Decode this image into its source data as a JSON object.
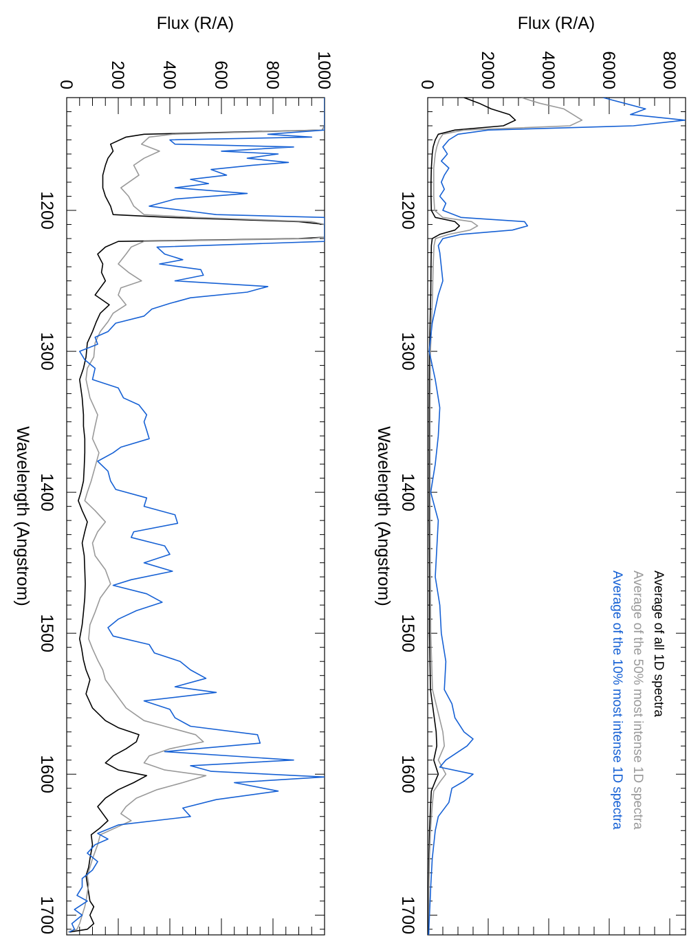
{
  "chart_data": [
    {
      "type": "line",
      "panel": "top",
      "orientation": "rotated-90",
      "xlabel": "Wavelength (Angstrom)",
      "ylabel": "Flux (R/A)",
      "xlim": [
        1120,
        1714
      ],
      "ylim": [
        0,
        8500
      ],
      "x_ticks": [
        "1200",
        "1300",
        "1400",
        "1500",
        "1600",
        "1700"
      ],
      "y_ticks": [
        "0",
        "2000",
        "4000",
        "6000",
        "8000"
      ],
      "legend": {
        "placement": "bottom-right",
        "entries": [
          {
            "label": "Average of all 1D spectra",
            "color": "#000000"
          },
          {
            "label": "Average of the 50% most intense 1D spectra",
            "color": "#999999"
          },
          {
            "label": "Average of the 10% most intense 1D spectra",
            "color": "#1560d4"
          }
        ]
      },
      "series": [
        {
          "name": "Average of all 1D spectra",
          "color": "#000000",
          "x": [
            1120,
            1124,
            1128,
            1132,
            1136,
            1140,
            1143,
            1146,
            1150,
            1155,
            1160,
            1170,
            1180,
            1190,
            1200,
            1205,
            1208,
            1211,
            1214,
            1217,
            1220,
            1225,
            1240,
            1260,
            1280,
            1300,
            1340,
            1380,
            1420,
            1460,
            1500,
            1540,
            1570,
            1580,
            1590,
            1600,
            1605,
            1612,
            1620,
            1640,
            1660,
            1680,
            1700,
            1714
          ],
          "y": [
            1200,
            1700,
            2100,
            2700,
            2900,
            2500,
            900,
            350,
            250,
            180,
            150,
            120,
            110,
            110,
            120,
            250,
            900,
            1050,
            900,
            400,
            150,
            120,
            110,
            100,
            80,
            60,
            50,
            50,
            50,
            60,
            60,
            90,
            280,
            300,
            200,
            350,
            250,
            120,
            100,
            60,
            40,
            30,
            30,
            30
          ]
        },
        {
          "name": "Average of the 50% most intense 1D spectra",
          "color": "#999999",
          "x": [
            1120,
            1124,
            1128,
            1132,
            1136,
            1140,
            1143,
            1146,
            1150,
            1155,
            1160,
            1170,
            1180,
            1190,
            1200,
            1205,
            1208,
            1211,
            1214,
            1217,
            1220,
            1225,
            1240,
            1260,
            1280,
            1300,
            1340,
            1380,
            1420,
            1460,
            1500,
            1540,
            1570,
            1580,
            1590,
            1600,
            1605,
            1612,
            1620,
            1640,
            1660,
            1680,
            1700,
            1714
          ],
          "y": [
            3100,
            3700,
            4500,
            4800,
            5100,
            4700,
            1200,
            500,
            380,
            300,
            250,
            200,
            200,
            200,
            230,
            500,
            1450,
            1650,
            1400,
            700,
            260,
            210,
            180,
            160,
            130,
            90,
            80,
            80,
            80,
            90,
            100,
            160,
            500,
            550,
            350,
            600,
            420,
            200,
            160,
            90,
            60,
            40,
            40,
            40
          ]
        },
        {
          "name": "Average of the 10% most intense 1D spectra",
          "color": "#1560d4",
          "x": [
            1120,
            1124,
            1128,
            1132,
            1136,
            1140,
            1143,
            1146,
            1150,
            1155,
            1160,
            1165,
            1170,
            1175,
            1180,
            1185,
            1190,
            1195,
            1200,
            1205,
            1208,
            1211,
            1214,
            1217,
            1220,
            1225,
            1230,
            1240,
            1250,
            1260,
            1270,
            1280,
            1290,
            1300,
            1320,
            1340,
            1360,
            1380,
            1400,
            1420,
            1440,
            1460,
            1480,
            1500,
            1520,
            1540,
            1550,
            1560,
            1570,
            1575,
            1580,
            1590,
            1595,
            1600,
            1605,
            1610,
            1620,
            1630,
            1640,
            1660,
            1680,
            1700,
            1714
          ],
          "y": [
            5800,
            6500,
            7200,
            6700,
            8500,
            6800,
            2000,
            1000,
            700,
            500,
            650,
            450,
            700,
            550,
            450,
            550,
            400,
            600,
            500,
            1100,
            3200,
            3300,
            2800,
            1100,
            500,
            350,
            400,
            450,
            500,
            350,
            250,
            150,
            100,
            50,
            250,
            400,
            350,
            250,
            100,
            350,
            300,
            250,
            400,
            450,
            600,
            550,
            800,
            900,
            1200,
            1500,
            1300,
            600,
            400,
            1500,
            1200,
            800,
            700,
            350,
            250,
            150,
            100,
            60,
            30
          ]
        }
      ]
    },
    {
      "type": "line",
      "panel": "bottom",
      "orientation": "rotated-90",
      "xlabel": "Wavelength (Angstrom)",
      "ylabel": "Flux (R/A)",
      "xlim": [
        1120,
        1714
      ],
      "ylim": [
        0,
        1000
      ],
      "x_ticks": [
        "1200",
        "1300",
        "1400",
        "1500",
        "1600",
        "1700"
      ],
      "y_ticks": [
        "0",
        "200",
        "400",
        "600",
        "800",
        "1000"
      ],
      "series": [
        {
          "name": "Average of all 1D spectra",
          "color": "#000000",
          "x": [
            1120,
            1140,
            1143,
            1146,
            1148,
            1153,
            1158,
            1163,
            1168,
            1175,
            1184,
            1190,
            1197,
            1203,
            1205,
            1208,
            1210,
            1219,
            1220,
            1222,
            1226,
            1231,
            1238,
            1244,
            1250,
            1255,
            1260,
            1267,
            1273,
            1279,
            1286,
            1294,
            1304,
            1312,
            1320,
            1333,
            1345,
            1353,
            1362,
            1372,
            1382,
            1392,
            1400,
            1406,
            1413,
            1421,
            1428,
            1436,
            1445,
            1455,
            1465,
            1475,
            1485,
            1494,
            1504,
            1511,
            1519,
            1526,
            1533,
            1543,
            1553,
            1562,
            1567,
            1572,
            1577,
            1582,
            1587,
            1592,
            1597,
            1601,
            1606,
            1611,
            1617,
            1623,
            1628,
            1633,
            1638,
            1643,
            1650,
            1660,
            1666,
            1672,
            1678,
            1684,
            1690,
            1694,
            1700,
            1706,
            1710,
            1712
          ],
          "y": [
            1000,
            1000,
            990,
            300,
            230,
            170,
            180,
            160,
            150,
            140,
            140,
            150,
            170,
            180,
            400,
            900,
            1000,
            1000,
            900,
            200,
            150,
            120,
            140,
            135,
            150,
            130,
            110,
            165,
            130,
            115,
            100,
            80,
            75,
            65,
            50,
            60,
            65,
            65,
            70,
            70,
            68,
            65,
            55,
            45,
            60,
            80,
            70,
            60,
            68,
            70,
            72,
            70,
            65,
            60,
            50,
            58,
            65,
            75,
            90,
            75,
            100,
            150,
            200,
            280,
            270,
            230,
            180,
            150,
            200,
            310,
            260,
            200,
            150,
            120,
            140,
            160,
            130,
            95,
            100,
            90,
            85,
            75,
            80,
            85,
            90,
            105,
            90,
            105,
            80,
            10
          ]
        },
        {
          "name": "Average of the 50% most intense 1D spectra",
          "color": "#999999",
          "x": [
            1120,
            1140,
            1143,
            1146,
            1148,
            1153,
            1158,
            1163,
            1168,
            1175,
            1184,
            1190,
            1197,
            1203,
            1205,
            1208,
            1210,
            1219,
            1220,
            1222,
            1226,
            1231,
            1238,
            1244,
            1250,
            1255,
            1260,
            1267,
            1273,
            1279,
            1286,
            1294,
            1304,
            1312,
            1320,
            1333,
            1345,
            1353,
            1362,
            1372,
            1382,
            1392,
            1400,
            1406,
            1413,
            1421,
            1428,
            1436,
            1445,
            1455,
            1465,
            1475,
            1485,
            1494,
            1504,
            1511,
            1519,
            1526,
            1533,
            1543,
            1553,
            1562,
            1567,
            1572,
            1577,
            1582,
            1587,
            1592,
            1597,
            1601,
            1606,
            1611,
            1617,
            1623,
            1628,
            1633,
            1638,
            1643,
            1650,
            1660,
            1666,
            1672,
            1678,
            1684,
            1690,
            1694,
            1700,
            1706,
            1710,
            1712
          ],
          "y": [
            1000,
            1000,
            990,
            410,
            320,
            290,
            360,
            300,
            260,
            280,
            210,
            240,
            260,
            300,
            500,
            950,
            1000,
            1000,
            950,
            300,
            250,
            230,
            200,
            240,
            290,
            210,
            200,
            230,
            180,
            160,
            130,
            110,
            105,
            80,
            75,
            90,
            120,
            110,
            100,
            125,
            110,
            95,
            80,
            70,
            110,
            150,
            120,
            100,
            110,
            150,
            170,
            130,
            110,
            90,
            85,
            100,
            120,
            140,
            150,
            190,
            230,
            300,
            400,
            500,
            530,
            400,
            320,
            300,
            380,
            540,
            450,
            350,
            270,
            230,
            210,
            250,
            190,
            130,
            120,
            100,
            90,
            80,
            85,
            80,
            75,
            70,
            60,
            50,
            40,
            5
          ]
        },
        {
          "name": "Average of the 10% most intense 1D spectra",
          "color": "#1560d4",
          "x": [
            1120,
            1140,
            1143,
            1146,
            1148,
            1150,
            1153,
            1155,
            1158,
            1160,
            1163,
            1166,
            1168,
            1171,
            1175,
            1178,
            1181,
            1184,
            1188,
            1192,
            1197,
            1200,
            1203,
            1205,
            1208,
            1219,
            1222,
            1226,
            1231,
            1235,
            1238,
            1242,
            1246,
            1250,
            1254,
            1258,
            1262,
            1266,
            1270,
            1275,
            1280,
            1286,
            1290,
            1295,
            1300,
            1306,
            1312,
            1320,
            1326,
            1333,
            1338,
            1345,
            1350,
            1356,
            1362,
            1368,
            1372,
            1378,
            1385,
            1392,
            1398,
            1404,
            1410,
            1416,
            1422,
            1428,
            1432,
            1438,
            1444,
            1450,
            1456,
            1462,
            1466,
            1472,
            1478,
            1484,
            1490,
            1496,
            1502,
            1508,
            1514,
            1520,
            1526,
            1532,
            1538,
            1542,
            1548,
            1554,
            1560,
            1566,
            1572,
            1578,
            1584,
            1590,
            1594,
            1598,
            1602,
            1606,
            1612,
            1618,
            1624,
            1630,
            1636,
            1642,
            1646,
            1650,
            1656,
            1662,
            1668,
            1674,
            1680,
            1686,
            1690,
            1696,
            1700,
            1706,
            1710,
            1712
          ],
          "y": [
            1000,
            1000,
            1000,
            780,
            950,
            400,
            420,
            880,
            600,
            820,
            700,
            860,
            720,
            560,
            620,
            480,
            550,
            420,
            700,
            420,
            320,
            450,
            580,
            1000,
            1000,
            1000,
            1000,
            350,
            380,
            450,
            360,
            520,
            530,
            420,
            780,
            700,
            480,
            400,
            330,
            300,
            190,
            160,
            110,
            120,
            50,
            70,
            110,
            100,
            200,
            220,
            280,
            310,
            300,
            310,
            320,
            210,
            180,
            120,
            160,
            170,
            190,
            310,
            300,
            420,
            430,
            260,
            250,
            380,
            400,
            300,
            410,
            250,
            180,
            310,
            370,
            270,
            200,
            160,
            180,
            320,
            340,
            440,
            480,
            540,
            420,
            580,
            300,
            400,
            420,
            480,
            740,
            750,
            380,
            880,
            480,
            560,
            1000,
            650,
            820,
            580,
            450,
            480,
            200,
            120,
            160,
            110,
            80,
            120,
            100,
            60,
            60,
            40,
            80,
            30,
            60,
            20,
            30,
            10
          ]
        }
      ]
    }
  ]
}
